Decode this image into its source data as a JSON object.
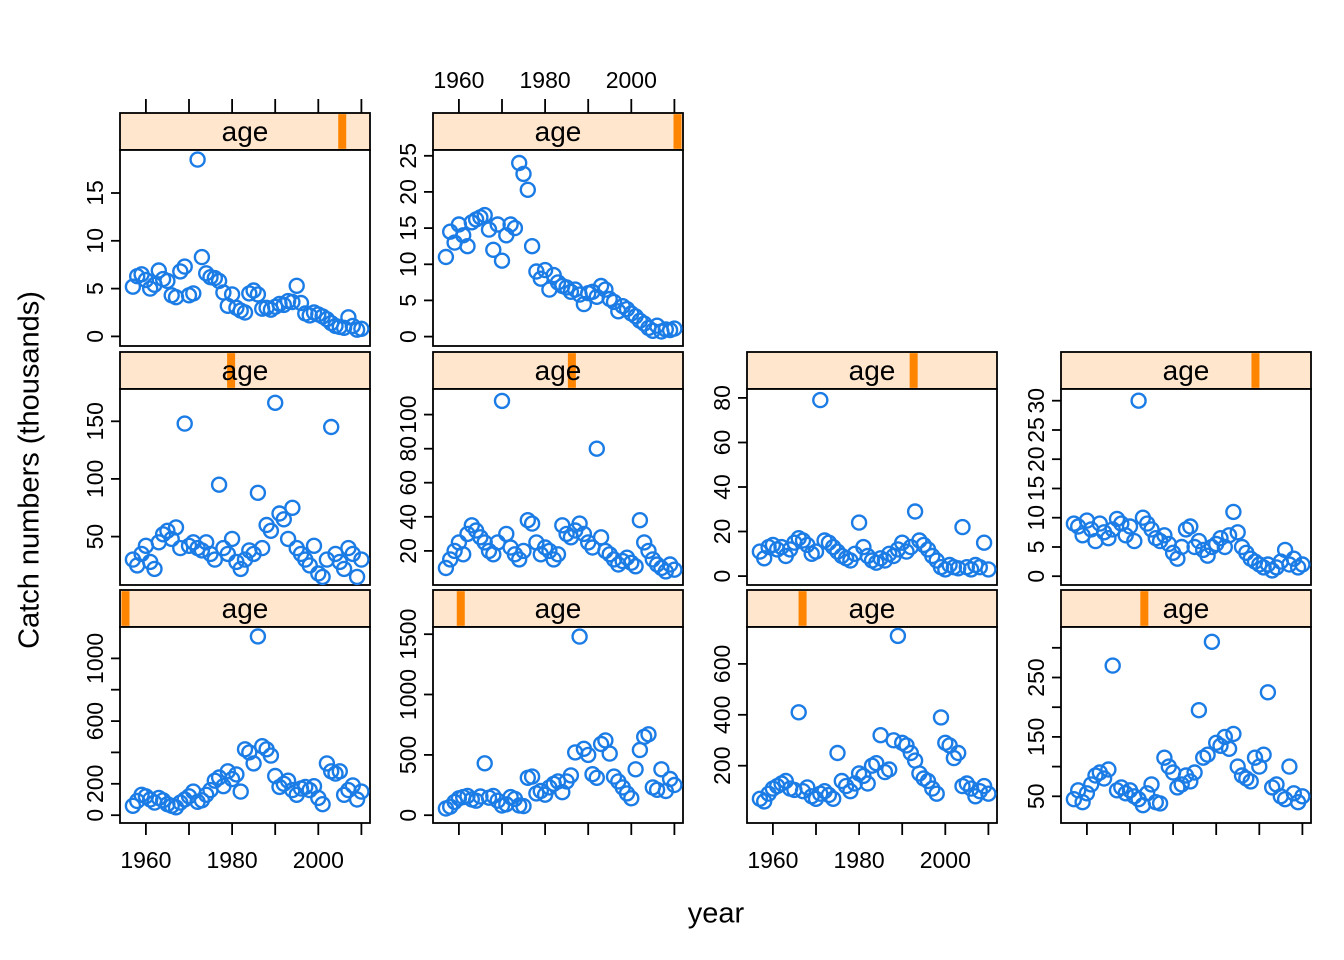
{
  "figure": {
    "ylabel": "Catch numbers (thousands)",
    "xlabel": "year",
    "strip_label": "age",
    "colors": {
      "point": "#1b7ce6",
      "strip_bg": "#ffe6cc",
      "strip_marker": "#ff8400",
      "border": "#000000"
    }
  },
  "chart_data": {
    "type": "scatter",
    "title": "",
    "xlabel": "year",
    "ylabel": "Catch numbers (thousands)",
    "strip_label": "age",
    "legend": "none",
    "grid": "off",
    "x_domain": [
      1954,
      2012
    ],
    "x_ticks": [
      1960,
      1970,
      1980,
      1990,
      2000,
      2010
    ],
    "x_tick_labels": [
      "1960",
      "1980",
      "2000"
    ],
    "years": [
      1957,
      1958,
      1959,
      1960,
      1961,
      1962,
      1963,
      1964,
      1965,
      1966,
      1967,
      1968,
      1969,
      1970,
      1971,
      1972,
      1973,
      1974,
      1975,
      1976,
      1977,
      1978,
      1979,
      1980,
      1981,
      1982,
      1983,
      1984,
      1985,
      1986,
      1987,
      1988,
      1989,
      1990,
      1991,
      1992,
      1993,
      1994,
      1995,
      1996,
      1997,
      1998,
      1999,
      2000,
      2001,
      2002,
      2003,
      2004,
      2005,
      2006,
      2007,
      2008,
      2009,
      2010
    ],
    "panels": [
      {
        "age": 1,
        "row": 2,
        "col": 0,
        "axis_top": null,
        "axis_bottom": "labels",
        "ylim": [
          -50,
          1200
        ],
        "yticks": [
          0,
          200,
          400,
          600,
          800,
          1000
        ],
        "ylabels": [
          "0",
          "200",
          "",
          "600",
          "",
          "1000"
        ],
        "values": [
          60,
          90,
          130,
          120,
          100,
          80,
          110,
          95,
          70,
          60,
          50,
          80,
          100,
          120,
          150,
          85,
          95,
          130,
          160,
          220,
          240,
          185,
          280,
          230,
          260,
          150,
          420,
          400,
          330,
          1140,
          440,
          420,
          380,
          250,
          180,
          200,
          220,
          160,
          130,
          170,
          180,
          160,
          185,
          110,
          70,
          330,
          280,
          265,
          280,
          130,
          160,
          190,
          100,
          150
        ]
      },
      {
        "age": 2,
        "row": 2,
        "col": 1,
        "axis_top": null,
        "axis_bottom": "ticks",
        "ylim": [
          -65,
          1560
        ],
        "yticks": [
          0,
          500,
          1000,
          1500
        ],
        "ylabels": [
          "0",
          "500",
          "1000",
          "1500"
        ],
        "values": [
          55,
          70,
          110,
          140,
          150,
          160,
          130,
          120,
          155,
          430,
          145,
          160,
          120,
          80,
          90,
          150,
          135,
          80,
          75,
          310,
          320,
          180,
          200,
          170,
          230,
          260,
          280,
          190,
          280,
          330,
          520,
          1480,
          550,
          500,
          340,
          310,
          590,
          620,
          510,
          320,
          280,
          230,
          180,
          140,
          380,
          540,
          650,
          670,
          230,
          210,
          380,
          200,
          300,
          250
        ]
      },
      {
        "age": 3,
        "row": 2,
        "col": 2,
        "axis_top": null,
        "axis_bottom": "labels",
        "ylim": [
          -25,
          745
        ],
        "yticks": [
          200,
          400,
          600
        ],
        "ylabels": [
          "200",
          "400",
          "600"
        ],
        "values": [
          70,
          60,
          90,
          110,
          120,
          130,
          140,
          110,
          105,
          410,
          100,
          115,
          80,
          70,
          90,
          100,
          85,
          70,
          250,
          140,
          120,
          100,
          130,
          170,
          160,
          130,
          200,
          210,
          320,
          175,
          185,
          300,
          710,
          290,
          280,
          250,
          220,
          170,
          150,
          140,
          110,
          90,
          390,
          290,
          280,
          230,
          250,
          120,
          130,
          110,
          80,
          100,
          120,
          90
        ]
      },
      {
        "age": 4,
        "row": 2,
        "col": 3,
        "axis_top": null,
        "axis_bottom": "ticks",
        "ylim": [
          5,
          335
        ],
        "yticks": [
          50,
          100,
          150,
          200,
          250,
          300
        ],
        "ylabels": [
          "50",
          "",
          "150",
          "",
          "250",
          ""
        ],
        "values": [
          45,
          60,
          40,
          55,
          70,
          85,
          90,
          80,
          95,
          270,
          60,
          65,
          55,
          60,
          50,
          45,
          35,
          55,
          70,
          40,
          38,
          115,
          100,
          90,
          65,
          70,
          85,
          75,
          90,
          195,
          115,
          120,
          310,
          140,
          135,
          150,
          130,
          155,
          100,
          85,
          80,
          75,
          115,
          100,
          120,
          225,
          65,
          70,
          50,
          45,
          100,
          55,
          40,
          50
        ]
      },
      {
        "age": 5,
        "row": 1,
        "col": 0,
        "axis_top": null,
        "axis_bottom": null,
        "ylim": [
          8,
          178
        ],
        "yticks": [
          50,
          100,
          150
        ],
        "ylabels": [
          "50",
          "100",
          "150"
        ],
        "values": [
          30,
          25,
          35,
          42,
          28,
          22,
          45,
          52,
          55,
          48,
          58,
          40,
          148,
          42,
          45,
          40,
          38,
          45,
          35,
          30,
          95,
          40,
          35,
          48,
          28,
          22,
          30,
          38,
          35,
          88,
          40,
          60,
          55,
          166,
          70,
          65,
          48,
          75,
          40,
          35,
          30,
          25,
          42,
          18,
          15,
          30,
          145,
          35,
          28,
          22,
          40,
          35,
          15,
          30
        ]
      },
      {
        "age": 6,
        "row": 1,
        "col": 1,
        "axis_top": null,
        "axis_bottom": null,
        "ylim": [
          0,
          115
        ],
        "yticks": [
          20,
          40,
          60,
          80,
          100
        ],
        "ylabels": [
          "20",
          "40",
          "60",
          "80",
          "100"
        ],
        "values": [
          10,
          15,
          20,
          25,
          18,
          30,
          35,
          32,
          28,
          25,
          20,
          18,
          25,
          108,
          30,
          22,
          18,
          15,
          20,
          38,
          36,
          25,
          18,
          22,
          20,
          15,
          18,
          35,
          30,
          28,
          32,
          36,
          30,
          25,
          22,
          80,
          28,
          20,
          18,
          15,
          12,
          14,
          16,
          13,
          11,
          38,
          25,
          20,
          15,
          12,
          10,
          8,
          12,
          9
        ]
      },
      {
        "age": 7,
        "row": 1,
        "col": 2,
        "axis_top": null,
        "axis_bottom": null,
        "ylim": [
          -4,
          84
        ],
        "yticks": [
          0,
          20,
          40,
          60,
          80
        ],
        "ylabels": [
          "0",
          "20",
          "40",
          "60",
          "80"
        ],
        "values": [
          11,
          8,
          13,
          14,
          12,
          13,
          9,
          12,
          15,
          17,
          16,
          14,
          10,
          11,
          79,
          16,
          15,
          13,
          11,
          9,
          8,
          7,
          10,
          24,
          13,
          9,
          7,
          6,
          8,
          7,
          10,
          9,
          12,
          15,
          11,
          13,
          29,
          16,
          14,
          12,
          9,
          7,
          4,
          3,
          5,
          4,
          3.5,
          22,
          4,
          3,
          5,
          4,
          15,
          3
        ]
      },
      {
        "age": 8,
        "row": 1,
        "col": 3,
        "axis_top": null,
        "axis_bottom": null,
        "ylim": [
          -1.5,
          32
        ],
        "yticks": [
          0,
          5,
          10,
          15,
          20,
          25,
          30
        ],
        "ylabels": [
          "0",
          "5",
          "10",
          "15",
          "20",
          "25",
          "30"
        ],
        "values": [
          9,
          8.5,
          7,
          9.5,
          8,
          6,
          9,
          7.5,
          6.5,
          8,
          9.8,
          9,
          7,
          8.5,
          6,
          30,
          10,
          9,
          8,
          6.5,
          6,
          7,
          5.5,
          4,
          3,
          5,
          8,
          8.5,
          5,
          6,
          4.5,
          3.5,
          5,
          5.5,
          6.5,
          5,
          7,
          11,
          7.5,
          5,
          4,
          3,
          2.5,
          2,
          1.5,
          2,
          1,
          1.5,
          2.5,
          4.5,
          2,
          3,
          1.5,
          2
        ]
      },
      {
        "age": 9,
        "row": 0,
        "col": 0,
        "axis_top": "ticks",
        "axis_bottom": null,
        "ylim": [
          -1,
          19.5
        ],
        "yticks": [
          0,
          5,
          10,
          15
        ],
        "ylabels": [
          "0",
          "5",
          "10",
          "15"
        ],
        "values": [
          5.2,
          6.3,
          6.5,
          5.9,
          5.0,
          5.4,
          6.9,
          6.0,
          5.8,
          4.3,
          4.1,
          6.8,
          7.3,
          4.3,
          4.5,
          18.5,
          8.3,
          6.6,
          6.2,
          6.1,
          5.8,
          4.6,
          3.2,
          4.4,
          3.0,
          2.7,
          2.5,
          4.5,
          4.8,
          4.4,
          2.9,
          3.0,
          2.8,
          3.1,
          3.4,
          3.3,
          3.7,
          3.6,
          5.3,
          3.5,
          2.4,
          2.2,
          2.5,
          2.3,
          2.1,
          1.8,
          1.4,
          1.1,
          1.0,
          0.9,
          2.0,
          1.1,
          0.7,
          0.8
        ]
      },
      {
        "age": 10,
        "row": 0,
        "col": 1,
        "axis_top": "labels",
        "axis_bottom": null,
        "ylim": [
          -1.3,
          25.8
        ],
        "yticks": [
          0,
          5,
          10,
          15,
          20,
          25
        ],
        "ylabels": [
          "0",
          "5",
          "10",
          "15",
          "20",
          "25"
        ],
        "values": [
          11,
          14.5,
          13,
          15.5,
          14,
          12.5,
          15.8,
          16.2,
          16.5,
          16.8,
          14.8,
          12,
          15.5,
          10.5,
          14,
          15.5,
          15,
          24,
          22.5,
          20.3,
          12.5,
          9,
          8,
          9.2,
          6.5,
          8.5,
          7.5,
          7,
          6.8,
          6.2,
          6.5,
          5.8,
          4.5,
          6,
          6.2,
          5.5,
          7,
          6.5,
          5.2,
          4.8,
          3.5,
          4.2,
          3.8,
          3.2,
          2.8,
          2.2,
          1.8,
          1.2,
          0.8,
          1.5,
          0.7,
          1.0,
          0.9,
          1.1
        ]
      }
    ]
  }
}
